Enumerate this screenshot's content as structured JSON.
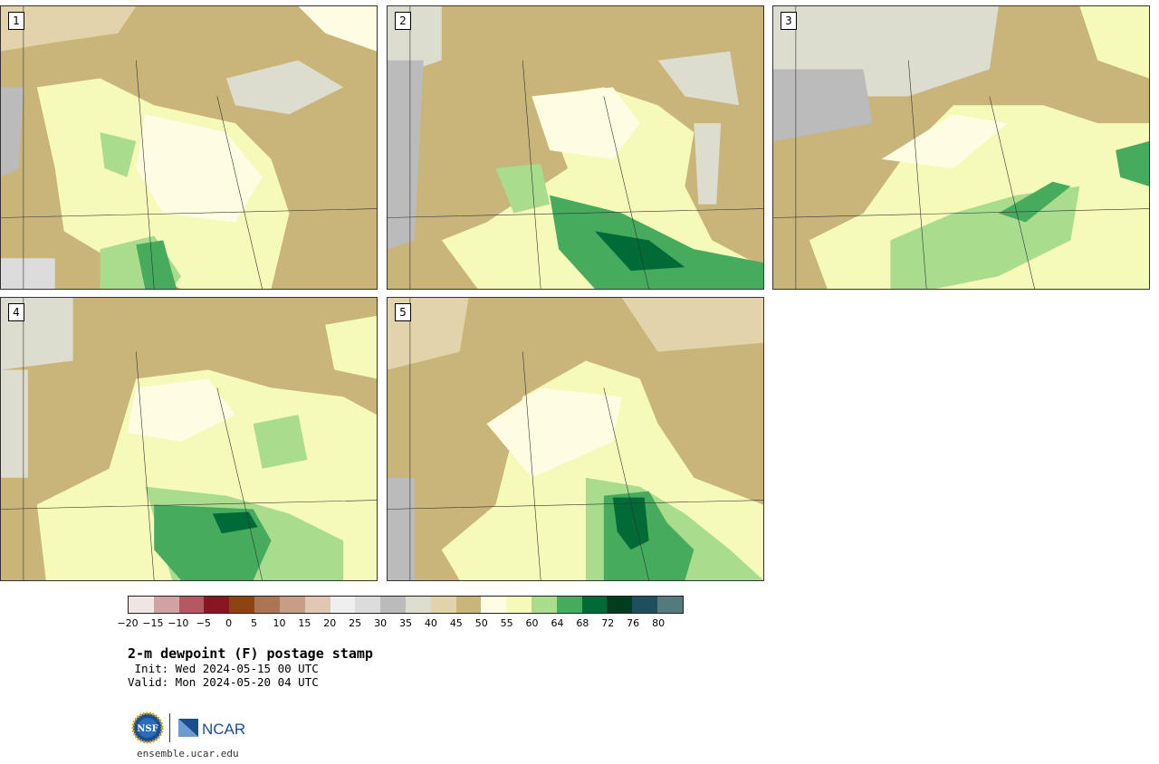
{
  "panels": [
    {
      "label": "1"
    },
    {
      "label": "2"
    },
    {
      "label": "3"
    },
    {
      "label": "4"
    },
    {
      "label": "5"
    }
  ],
  "colorbar": {
    "colors": [
      "#f1e4e4",
      "#d1a1a4",
      "#b15a63",
      "#891621",
      "#8b4513",
      "#a97552",
      "#c69d85",
      "#e0c6b4",
      "#efefef",
      "#dcdcdc",
      "#bbbbbb",
      "#dcdccf",
      "#e3d3aa",
      "#c9b47a",
      "#fefde3",
      "#f6fab8",
      "#a9dc8d",
      "#46ab5d",
      "#006b36",
      "#003d20",
      "#1f4f5d",
      "#537b7c"
    ],
    "ticks": [
      "−20",
      "−15",
      "−10",
      "−5",
      "0",
      "5",
      "10",
      "15",
      "20",
      "25",
      "30",
      "35",
      "40",
      "45",
      "50",
      "55",
      "60",
      "64",
      "68",
      "72",
      "76",
      "80"
    ]
  },
  "title": "2-m dewpoint (F) postage stamp",
  "init": " Init: Wed 2024-05-15 00 UTC",
  "valid": "Valid: Mon 2024-05-20 04 UTC",
  "logo": {
    "ncar_text": "NCAR",
    "nsf_text": "NSF"
  },
  "url": "ensemble.ucar.edu"
}
